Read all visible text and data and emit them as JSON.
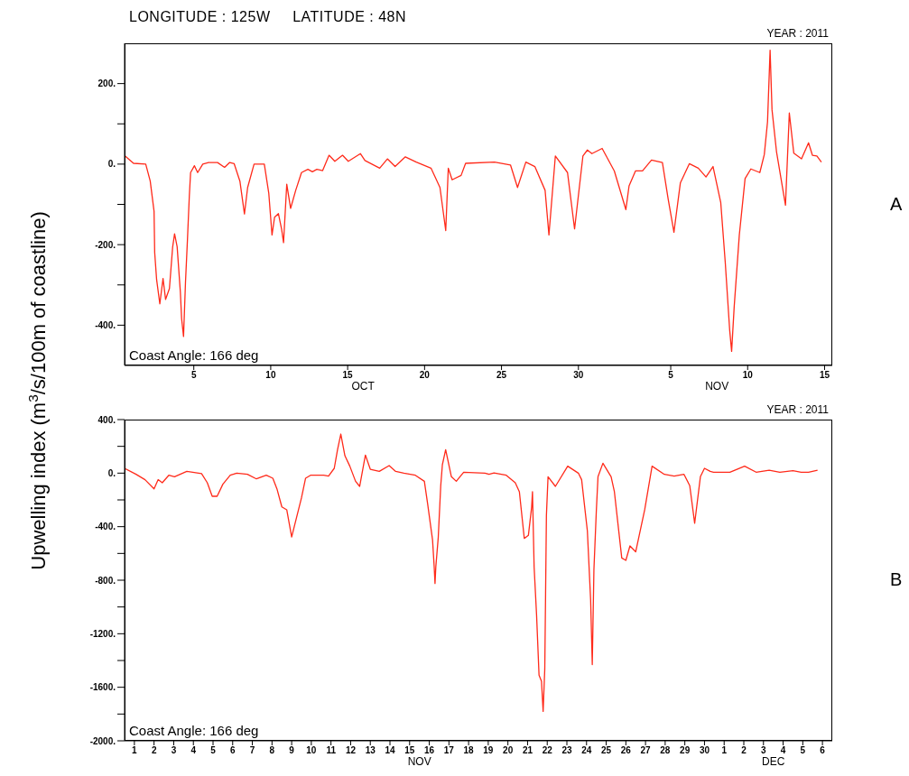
{
  "chart_data": [
    {
      "type": "line",
      "title": "LONGITUDE : 125W     LATITUDE : 48N",
      "subtitle": "YEAR : 2011",
      "ylabel": "Upwelling index (m$^{3}$/s/100m of coastline)",
      "annotations": [
        "Coast Angle: 166 deg",
        "A",
        "OCT",
        "NOV"
      ],
      "xlim": [
        "2011-10-01T00:00",
        "2011-11-16T00:00"
      ],
      "xticks": [
        {
          "value": "2011-10-05T12:00",
          "label": "5"
        },
        {
          "value": "2011-10-10T12:00",
          "label": "10"
        },
        {
          "value": "2011-10-15T12:00",
          "label": "15"
        },
        {
          "value": "2011-10-20T12:00",
          "label": "20"
        },
        {
          "value": "2011-10-25T12:00",
          "label": "25"
        },
        {
          "value": "2011-10-30T12:00",
          "label": "30"
        },
        {
          "value": "2011-11-05T12:00",
          "label": "5"
        },
        {
          "value": "2011-11-10T12:00",
          "label": "10"
        },
        {
          "value": "2011-11-15T12:00",
          "label": "15"
        }
      ],
      "ylim": [
        -500,
        300
      ],
      "yticks": [
        {
          "value": 200,
          "label": "200."
        },
        {
          "value": 100,
          "label": null
        },
        {
          "value": 0,
          "label": "0."
        },
        {
          "value": -100,
          "label": null
        },
        {
          "value": -200,
          "label": "-200."
        },
        {
          "value": -300,
          "label": null
        },
        {
          "value": -400,
          "label": "-400."
        }
      ],
      "marker": "none",
      "line_style": "solid",
      "x": [
        "2011-10-01T01:00",
        "2011-10-01T14:00",
        "2011-10-02T09:00",
        "2011-10-02T16:00",
        "2011-10-02T22:00",
        "2011-10-02T23:00",
        "2011-10-03T02:00",
        "2011-10-03T07:00",
        "2011-10-03T12:00",
        "2011-10-03T16:00",
        "2011-10-03T22:00",
        "2011-10-04T03:00",
        "2011-10-04T06:00",
        "2011-10-04T10:00",
        "2011-10-04T15:00",
        "2011-10-04T17:00",
        "2011-10-04T20:00",
        "2011-10-04T23:00",
        "2011-10-05T02:00",
        "2011-10-05T05:00",
        "2011-10-05T07:00",
        "2011-10-05T13:00",
        "2011-10-05T18:00",
        "2011-10-06T02:00",
        "2011-10-06T11:00",
        "2011-10-07T01:00",
        "2011-10-07T12:00",
        "2011-10-07T20:00",
        "2011-10-08T03:00",
        "2011-10-08T12:00",
        "2011-10-08T19:00",
        "2011-10-09T00:00",
        "2011-10-09T10:00",
        "2011-10-10T02:00",
        "2011-10-10T09:00",
        "2011-10-10T14:00",
        "2011-10-10T18:00",
        "2011-10-11T00:00",
        "2011-10-11T05:00",
        "2011-10-11T08:00",
        "2011-10-11T13:00",
        "2011-10-11T19:00",
        "2011-10-12T03:00",
        "2011-10-12T12:00",
        "2011-10-12T22:00",
        "2011-10-13T05:00",
        "2011-10-13T12:00",
        "2011-10-13T21:00",
        "2011-10-14T07:00",
        "2011-10-14T16:00",
        "2011-10-15T04:00",
        "2011-10-15T13:00",
        "2011-10-16T08:00",
        "2011-10-16T15:00",
        "2011-10-17T14:00",
        "2011-10-18T02:00",
        "2011-10-18T14:00",
        "2011-10-19T06:00",
        "2011-10-19T23:00",
        "2011-10-20T22:00",
        "2011-10-21T12:00",
        "2011-10-21T21:00",
        "2011-10-22T01:00",
        "2011-10-22T07:00",
        "2011-10-22T21:00",
        "2011-10-23T04:00",
        "2011-10-25T01:00",
        "2011-10-26T02:00",
        "2011-10-26T13:00",
        "2011-10-27T02:00",
        "2011-10-27T16:00",
        "2011-10-28T08:00",
        "2011-10-28T14:00",
        "2011-10-29T00:00",
        "2011-10-29T19:00",
        "2011-10-30T06:00",
        "2011-10-30T19:00",
        "2011-10-31T02:00",
        "2011-10-31T09:00",
        "2011-11-01T01:00",
        "2011-11-01T20:00",
        "2011-11-02T14:00",
        "2011-11-02T19:00",
        "2011-11-03T05:00",
        "2011-11-03T16:00",
        "2011-11-04T06:00",
        "2011-11-04T23:00",
        "2011-11-05T08:00",
        "2011-11-05T17:00",
        "2011-11-06T03:00",
        "2011-11-06T17:00",
        "2011-11-07T07:00",
        "2011-11-07T19:00",
        "2011-11-08T06:00",
        "2011-11-08T18:00",
        "2011-11-09T01:00",
        "2011-11-09T08:00",
        "2011-11-09T11:00",
        "2011-11-09T15:00",
        "2011-11-09T23:00",
        "2011-11-10T08:00",
        "2011-11-10T17:00",
        "2011-11-11T07:00",
        "2011-11-11T14:00",
        "2011-11-11T19:00",
        "2011-11-11T23:00",
        "2011-11-12T02:00",
        "2011-11-12T09:00",
        "2011-11-12T23:00",
        "2011-11-13T05:00",
        "2011-11-13T12:00",
        "2011-11-14T00:00",
        "2011-11-14T11:00",
        "2011-11-14T17:00",
        "2011-11-15T00:00",
        "2011-11-15T07:00"
      ],
      "series": [
        {
          "color": "#ff2a1a",
          "values": [
            20,
            2,
            0,
            -42,
            -117,
            -220,
            -287,
            -347,
            -284,
            -336,
            -309,
            -206,
            -173,
            -205,
            -317,
            -384,
            -428,
            -295,
            -191,
            -80,
            -21,
            -4,
            -21,
            0,
            4,
            4,
            -8,
            4,
            1,
            -43,
            -124,
            -58,
            0,
            0,
            -73,
            -176,
            -132,
            -123,
            -162,
            -195,
            -50,
            -110,
            -65,
            -21,
            -13,
            -19,
            -13,
            -16,
            22,
            7,
            22,
            7,
            26,
            9,
            -10,
            13,
            -6,
            18,
            5,
            -10,
            -58,
            -165,
            -10,
            -39,
            -28,
            2,
            5,
            -2,
            -58,
            5,
            -6,
            -65,
            -176,
            20,
            -21,
            -161,
            20,
            35,
            26,
            39,
            -17,
            -113,
            -54,
            -17,
            -17,
            10,
            4,
            -87,
            -169,
            -47,
            1,
            -10,
            -32,
            -6,
            -95,
            -243,
            -413,
            -465,
            -354,
            -176,
            -36,
            -12,
            -21,
            24,
            105,
            283,
            135,
            31,
            -102,
            127,
            27,
            13,
            53,
            22,
            20,
            5
          ]
        }
      ]
    },
    {
      "type": "line",
      "subtitle": "YEAR : 2011",
      "annotations": [
        "Coast Angle: 166 deg",
        "B",
        "NOV",
        "DEC"
      ],
      "xlim": [
        "2011-11-01T00:00",
        "2011-12-07T00:00"
      ],
      "xticks": [
        {
          "value": "2011-11-01T12:00",
          "label": "1"
        },
        {
          "value": "2011-11-02T12:00",
          "label": "2"
        },
        {
          "value": "2011-11-03T12:00",
          "label": "3"
        },
        {
          "value": "2011-11-04T12:00",
          "label": "4"
        },
        {
          "value": "2011-11-05T12:00",
          "label": "5"
        },
        {
          "value": "2011-11-06T12:00",
          "label": "6"
        },
        {
          "value": "2011-11-07T12:00",
          "label": "7"
        },
        {
          "value": "2011-11-08T12:00",
          "label": "8"
        },
        {
          "value": "2011-11-09T12:00",
          "label": "9"
        },
        {
          "value": "2011-11-10T12:00",
          "label": "10"
        },
        {
          "value": "2011-11-11T12:00",
          "label": "11"
        },
        {
          "value": "2011-11-12T12:00",
          "label": "12"
        },
        {
          "value": "2011-11-13T12:00",
          "label": "13"
        },
        {
          "value": "2011-11-14T12:00",
          "label": "14"
        },
        {
          "value": "2011-11-15T12:00",
          "label": "15"
        },
        {
          "value": "2011-11-16T12:00",
          "label": "16"
        },
        {
          "value": "2011-11-17T12:00",
          "label": "17"
        },
        {
          "value": "2011-11-18T12:00",
          "label": "18"
        },
        {
          "value": "2011-11-19T12:00",
          "label": "19"
        },
        {
          "value": "2011-11-20T12:00",
          "label": "20"
        },
        {
          "value": "2011-11-21T12:00",
          "label": "21"
        },
        {
          "value": "2011-11-22T12:00",
          "label": "22"
        },
        {
          "value": "2011-11-23T12:00",
          "label": "23"
        },
        {
          "value": "2011-11-24T12:00",
          "label": "24"
        },
        {
          "value": "2011-11-25T12:00",
          "label": "25"
        },
        {
          "value": "2011-11-26T12:00",
          "label": "26"
        },
        {
          "value": "2011-11-27T12:00",
          "label": "27"
        },
        {
          "value": "2011-11-28T12:00",
          "label": "28"
        },
        {
          "value": "2011-11-29T12:00",
          "label": "29"
        },
        {
          "value": "2011-11-30T12:00",
          "label": "30"
        },
        {
          "value": "2011-12-01T12:00",
          "label": "1"
        },
        {
          "value": "2011-12-02T12:00",
          "label": "2"
        },
        {
          "value": "2011-12-03T12:00",
          "label": "3"
        },
        {
          "value": "2011-12-04T12:00",
          "label": "4"
        },
        {
          "value": "2011-12-05T12:00",
          "label": "5"
        },
        {
          "value": "2011-12-06T12:00",
          "label": "6"
        }
      ],
      "ylim": [
        -2000,
        400
      ],
      "yticks": [
        {
          "value": 400,
          "label": "400."
        },
        {
          "value": 200,
          "label": null
        },
        {
          "value": 0,
          "label": "0."
        },
        {
          "value": -200,
          "label": null
        },
        {
          "value": -400,
          "label": "-400."
        },
        {
          "value": -600,
          "label": null
        },
        {
          "value": -800,
          "label": "-800."
        },
        {
          "value": -1000,
          "label": null
        },
        {
          "value": -1200,
          "label": "-1200."
        },
        {
          "value": -1400,
          "label": null
        },
        {
          "value": -1600,
          "label": "-1600."
        },
        {
          "value": -1800,
          "label": null
        },
        {
          "value": -2000,
          "label": "-2000."
        }
      ],
      "marker": "none",
      "line_style": "solid",
      "x": [
        "2011-11-01T00:00",
        "2011-11-01T14:00",
        "2011-11-02T01:00",
        "2011-11-02T12:00",
        "2011-11-02T17:00",
        "2011-11-02T22:00",
        "2011-11-03T06:00",
        "2011-11-03T13:00",
        "2011-11-04T04:00",
        "2011-11-04T22:00",
        "2011-11-05T05:00",
        "2011-11-05T11:00",
        "2011-11-05T17:00",
        "2011-11-06T00:00",
        "2011-11-06T09:00",
        "2011-11-06T17:00",
        "2011-11-07T06:00",
        "2011-11-07T17:00",
        "2011-11-08T05:00",
        "2011-11-08T13:00",
        "2011-11-08T18:00",
        "2011-11-09T00:00",
        "2011-11-09T06:00",
        "2011-11-09T12:00",
        "2011-11-09T18:00",
        "2011-11-10T00:00",
        "2011-11-10T05:00",
        "2011-11-10T11:00",
        "2011-11-11T03:00",
        "2011-11-11T09:00",
        "2011-11-11T16:00",
        "2011-11-11T20:00",
        "2011-11-12T00:00",
        "2011-11-12T05:00",
        "2011-11-12T11:00",
        "2011-11-12T18:00",
        "2011-11-12T23:00",
        "2011-11-13T06:00",
        "2011-11-13T12:00",
        "2011-11-13T23:00",
        "2011-11-14T11:00",
        "2011-11-14T19:00",
        "2011-11-15T05:00",
        "2011-11-15T19:00",
        "2011-11-16T06:00",
        "2011-11-16T10:00",
        "2011-11-16T16:00",
        "2011-11-16T18:00",
        "2011-11-16T19:00",
        "2011-11-16T20:00",
        "2011-11-16T23:00",
        "2011-11-17T02:00",
        "2011-11-17T04:00",
        "2011-11-17T08:00",
        "2011-11-17T15:00",
        "2011-11-17T21:00",
        "2011-11-18T06:00",
        "2011-11-19T08:00",
        "2011-11-19T13:00",
        "2011-11-19T19:00",
        "2011-11-20T10:00",
        "2011-11-20T21:00",
        "2011-11-21T02:00",
        "2011-11-21T08:00",
        "2011-11-21T13:00",
        "2011-11-21T17:00",
        "2011-11-21T18:00",
        "2011-11-21T20:00",
        "2011-11-21T23:00",
        "2011-11-22T02:00",
        "2011-11-22T05:00",
        "2011-11-22T07:00",
        "2011-11-22T09:00",
        "2011-11-22T10:00",
        "2011-11-22T11:00",
        "2011-11-22T13:00",
        "2011-11-22T22:00",
        "2011-11-23T13:00",
        "2011-11-24T02:00",
        "2011-11-24T06:00",
        "2011-11-24T13:00",
        "2011-11-24T17:00",
        "2011-11-24T19:00",
        "2011-11-24T21:00",
        "2011-11-25T00:00",
        "2011-11-25T02:00",
        "2011-11-25T08:00",
        "2011-11-25T18:00",
        "2011-11-25T22:00",
        "2011-11-26T07:00",
        "2011-11-26T12:00",
        "2011-11-26T17:00",
        "2011-11-27T00:00",
        "2011-11-27T11:00",
        "2011-11-27T20:00",
        "2011-11-28T11:00",
        "2011-11-28T23:00",
        "2011-11-29T11:00",
        "2011-11-29T18:00",
        "2011-11-30T00:00",
        "2011-11-30T07:00",
        "2011-11-30T12:00",
        "2011-11-30T19:00",
        "2011-11-30T23:00",
        "2011-12-01T19:00",
        "2011-12-02T13:00",
        "2011-12-03T03:00",
        "2011-12-03T19:00",
        "2011-12-04T08:00",
        "2011-12-05T00:00",
        "2011-12-05T10:00",
        "2011-12-05T19:00",
        "2011-12-06T06:00"
      ],
      "series": [
        {
          "color": "#ff2a1a",
          "values": [
            36,
            -9,
            -49,
            -117,
            -49,
            -72,
            -16,
            -27,
            13,
            -4,
            -72,
            -173,
            -173,
            -83,
            -16,
            0,
            -9,
            -43,
            -16,
            -38,
            -117,
            -252,
            -274,
            -477,
            -330,
            -184,
            -38,
            -16,
            -16,
            -22,
            36,
            175,
            292,
            130,
            52,
            -61,
            -99,
            135,
            29,
            13,
            56,
            13,
            0,
            -16,
            -61,
            -229,
            -499,
            -701,
            -825,
            -701,
            -477,
            -94,
            63,
            175,
            -27,
            -61,
            7,
            0,
            -9,
            2,
            -16,
            -72,
            -139,
            -488,
            -465,
            -252,
            -139,
            -701,
            -1061,
            -1510,
            -1555,
            -1780,
            -1465,
            -903,
            -319,
            -27,
            -99,
            52,
            0,
            -49,
            -431,
            -948,
            -1431,
            -723,
            -274,
            -27,
            74,
            -27,
            -139,
            -634,
            -652,
            -544,
            -588,
            -274,
            52,
            -9,
            -22,
            -9,
            -94,
            -375,
            -27,
            36,
            13,
            7,
            7,
            52,
            7,
            22,
            7,
            18,
            7,
            7,
            22
          ]
        }
      ]
    }
  ]
}
